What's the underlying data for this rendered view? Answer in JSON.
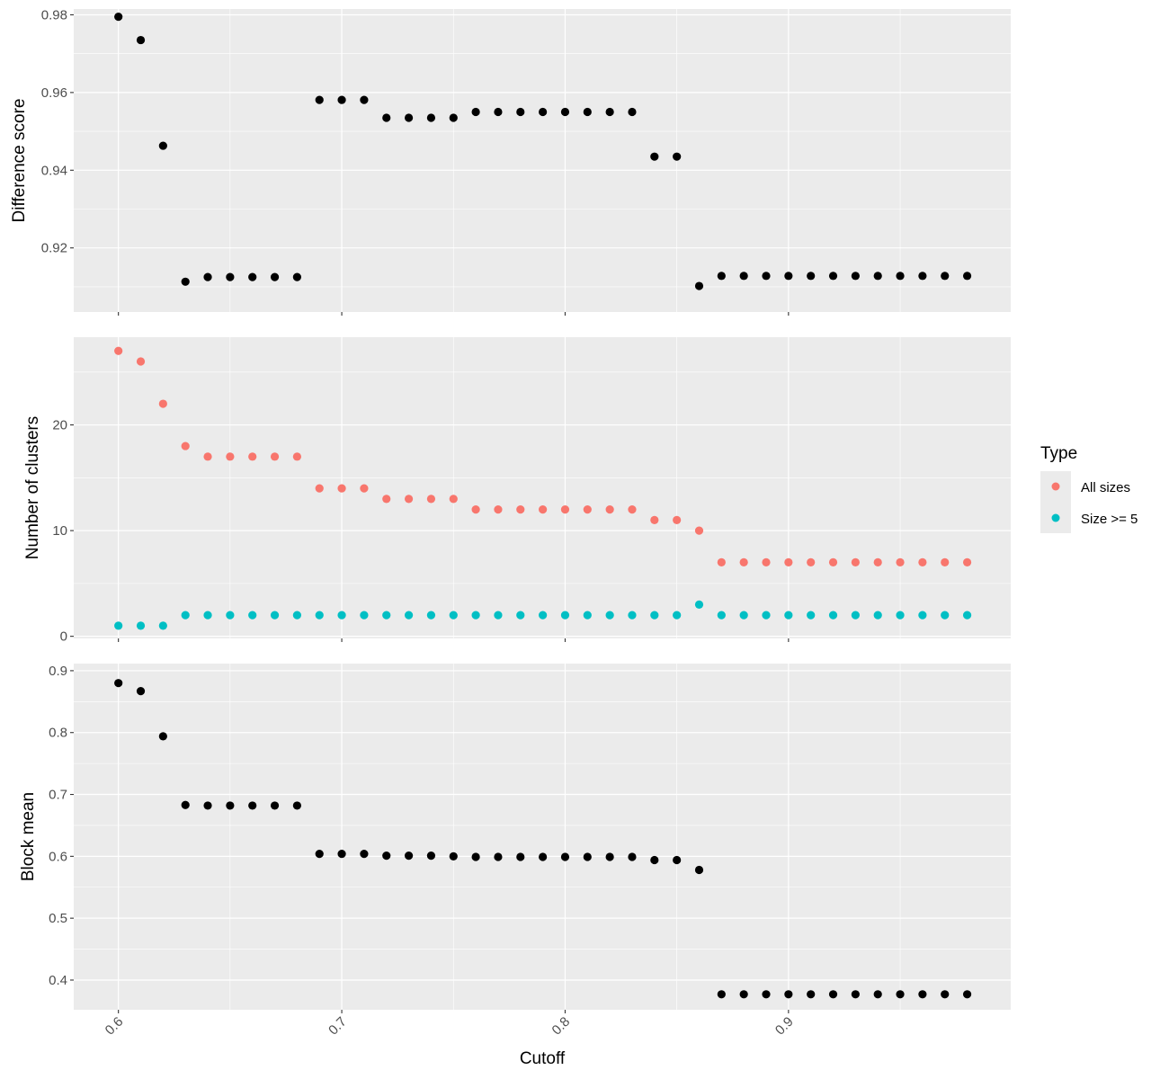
{
  "chart_data": [
    {
      "type": "scatter",
      "title": "",
      "xlabel": "",
      "ylabel": "Difference score",
      "xlim": [
        0.58,
        0.9995
      ],
      "ylim": [
        0.9035,
        0.9815
      ],
      "yticks": [
        0.92,
        0.94,
        0.96,
        0.98
      ],
      "ytick_labels": [
        "0.92",
        "0.94",
        "0.96",
        "0.98"
      ],
      "grid": true,
      "series": [
        {
          "color": "#000000",
          "x": [
            0.6,
            0.61,
            0.62,
            0.63,
            0.64,
            0.65,
            0.66,
            0.67,
            0.68,
            0.69,
            0.7,
            0.71,
            0.72,
            0.73,
            0.74,
            0.75,
            0.76,
            0.77,
            0.78,
            0.79,
            0.8,
            0.81,
            0.82,
            0.83,
            0.84,
            0.85,
            0.86,
            0.87,
            0.88,
            0.89,
            0.9,
            0.91,
            0.92,
            0.93,
            0.94,
            0.95,
            0.96,
            0.97,
            0.98
          ],
          "values": [
            0.9795,
            0.9735,
            0.9463,
            0.9113,
            0.9125,
            0.9125,
            0.9125,
            0.9125,
            0.9125,
            0.9581,
            0.9581,
            0.9581,
            0.9535,
            0.9535,
            0.9535,
            0.9535,
            0.955,
            0.955,
            0.955,
            0.955,
            0.955,
            0.955,
            0.955,
            0.955,
            0.9435,
            0.9435,
            0.9102,
            0.9128,
            0.9128,
            0.9128,
            0.9128,
            0.9128,
            0.9128,
            0.9128,
            0.9128,
            0.9128,
            0.9128,
            0.9128,
            0.9128
          ]
        }
      ]
    },
    {
      "type": "scatter",
      "title": "",
      "xlabel": "",
      "ylabel": "Number of clusters",
      "xlim": [
        0.58,
        0.9995
      ],
      "ylim": [
        -0.2,
        28.3
      ],
      "yticks": [
        0,
        10,
        20
      ],
      "ytick_labels": [
        "0",
        "10",
        "20"
      ],
      "grid": true,
      "legend": {
        "title": "Type",
        "position": "right"
      },
      "series": [
        {
          "name": "All sizes",
          "color": "#F8766D",
          "x": [
            0.6,
            0.61,
            0.62,
            0.63,
            0.64,
            0.65,
            0.66,
            0.67,
            0.68,
            0.69,
            0.7,
            0.71,
            0.72,
            0.73,
            0.74,
            0.75,
            0.76,
            0.77,
            0.78,
            0.79,
            0.8,
            0.81,
            0.82,
            0.83,
            0.84,
            0.85,
            0.86,
            0.87,
            0.88,
            0.89,
            0.9,
            0.91,
            0.92,
            0.93,
            0.94,
            0.95,
            0.96,
            0.97,
            0.98
          ],
          "values": [
            27,
            26,
            22,
            18,
            17,
            17,
            17,
            17,
            17,
            14,
            14,
            14,
            13,
            13,
            13,
            13,
            12,
            12,
            12,
            12,
            12,
            12,
            12,
            12,
            11,
            11,
            10,
            7,
            7,
            7,
            7,
            7,
            7,
            7,
            7,
            7,
            7,
            7,
            7
          ]
        },
        {
          "name": "Size >= 5",
          "color": "#00BFC4",
          "x": [
            0.6,
            0.61,
            0.62,
            0.63,
            0.64,
            0.65,
            0.66,
            0.67,
            0.68,
            0.69,
            0.7,
            0.71,
            0.72,
            0.73,
            0.74,
            0.75,
            0.76,
            0.77,
            0.78,
            0.79,
            0.8,
            0.81,
            0.82,
            0.83,
            0.84,
            0.85,
            0.86,
            0.87,
            0.88,
            0.89,
            0.9,
            0.91,
            0.92,
            0.93,
            0.94,
            0.95,
            0.96,
            0.97,
            0.98
          ],
          "values": [
            1,
            1,
            1,
            2,
            2,
            2,
            2,
            2,
            2,
            2,
            2,
            2,
            2,
            2,
            2,
            2,
            2,
            2,
            2,
            2,
            2,
            2,
            2,
            2,
            2,
            2,
            3,
            2,
            2,
            2,
            2,
            2,
            2,
            2,
            2,
            2,
            2,
            2,
            2
          ]
        }
      ]
    },
    {
      "type": "scatter",
      "title": "",
      "xlabel": "Cutoff",
      "ylabel": "Block mean",
      "xlim": [
        0.58,
        0.9995
      ],
      "ylim": [
        0.352,
        0.9115
      ],
      "yticks": [
        0.4,
        0.5,
        0.6,
        0.7,
        0.8,
        0.9
      ],
      "ytick_labels": [
        "0.4",
        "0.5",
        "0.6",
        "0.7",
        "0.8",
        "0.9"
      ],
      "xticks": [
        0.6,
        0.7,
        0.8,
        0.9
      ],
      "xtick_labels": [
        "0.6",
        "0.7",
        "0.8",
        "0.9"
      ],
      "grid": true,
      "series": [
        {
          "color": "#000000",
          "x": [
            0.6,
            0.61,
            0.62,
            0.63,
            0.64,
            0.65,
            0.66,
            0.67,
            0.68,
            0.69,
            0.7,
            0.71,
            0.72,
            0.73,
            0.74,
            0.75,
            0.76,
            0.77,
            0.78,
            0.79,
            0.8,
            0.81,
            0.82,
            0.83,
            0.84,
            0.85,
            0.86,
            0.87,
            0.88,
            0.89,
            0.9,
            0.91,
            0.92,
            0.93,
            0.94,
            0.95,
            0.96,
            0.97,
            0.98
          ],
          "values": [
            0.88,
            0.867,
            0.794,
            0.683,
            0.682,
            0.682,
            0.682,
            0.682,
            0.682,
            0.604,
            0.604,
            0.604,
            0.601,
            0.601,
            0.601,
            0.6,
            0.599,
            0.599,
            0.599,
            0.599,
            0.599,
            0.599,
            0.599,
            0.599,
            0.594,
            0.594,
            0.578,
            0.377,
            0.377,
            0.377,
            0.377,
            0.377,
            0.377,
            0.377,
            0.377,
            0.377,
            0.377,
            0.377,
            0.377
          ]
        }
      ]
    }
  ],
  "colors": {
    "panel_background": "#EBEBEB",
    "grid_line": "#FFFFFF",
    "tick_text": "#4D4D4D",
    "tick_mark": "#333333"
  }
}
